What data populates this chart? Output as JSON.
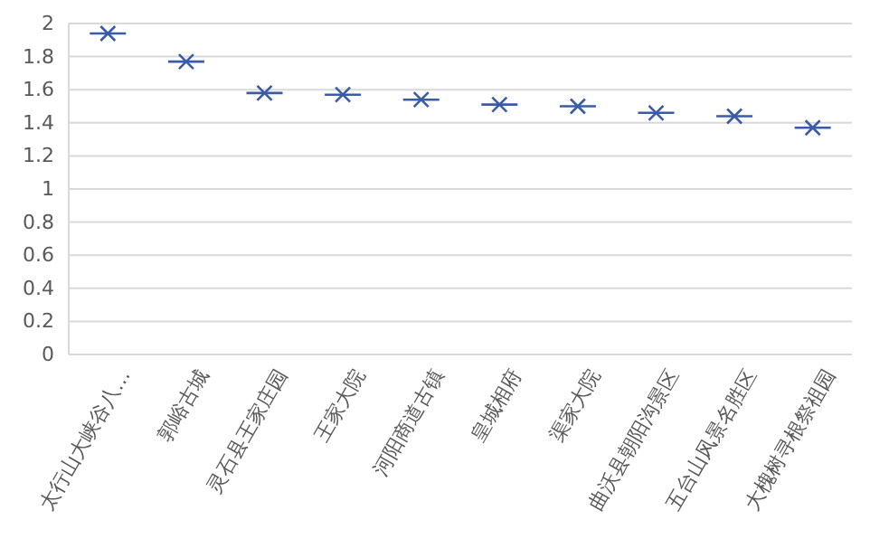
{
  "chart_data": {
    "type": "box",
    "categories": [
      "太行山大峡谷八…",
      "郭峪古城",
      "灵石县王家庄园",
      "王家大院",
      "河阳商道古镇",
      "皇城相府",
      "渠家大院",
      "曲沃县朝阳沟景区",
      "五台山风景名胜区",
      "大槐树寻根祭祖园"
    ],
    "series": [
      {
        "color": "#3a5ba8",
        "boxes": [
          {
            "low": 1.94,
            "q1": 1.94,
            "median": 1.94,
            "q3": 1.94,
            "high": 1.94,
            "mean": 1.94
          },
          {
            "low": 1.77,
            "q1": 1.77,
            "median": 1.77,
            "q3": 1.77,
            "high": 1.77,
            "mean": 1.77
          },
          {
            "low": 1.58,
            "q1": 1.58,
            "median": 1.58,
            "q3": 1.58,
            "high": 1.58,
            "mean": 1.58
          },
          {
            "low": 1.57,
            "q1": 1.57,
            "median": 1.57,
            "q3": 1.57,
            "high": 1.57,
            "mean": 1.57
          },
          {
            "low": 1.54,
            "q1": 1.54,
            "median": 1.54,
            "q3": 1.54,
            "high": 1.54,
            "mean": 1.54
          },
          {
            "low": 1.51,
            "q1": 1.51,
            "median": 1.51,
            "q3": 1.51,
            "high": 1.51,
            "mean": 1.51
          },
          {
            "low": 1.5,
            "q1": 1.5,
            "median": 1.5,
            "q3": 1.5,
            "high": 1.5,
            "mean": 1.5
          },
          {
            "low": 1.46,
            "q1": 1.46,
            "median": 1.46,
            "q3": 1.46,
            "high": 1.46,
            "mean": 1.46
          },
          {
            "low": 1.44,
            "q1": 1.44,
            "median": 1.44,
            "q3": 1.44,
            "high": 1.44,
            "mean": 1.44
          },
          {
            "low": 1.37,
            "q1": 1.37,
            "median": 1.37,
            "q3": 1.37,
            "high": 1.37,
            "mean": 1.37
          }
        ]
      }
    ],
    "ylim": [
      0,
      2
    ],
    "yticks": [
      0,
      0.2,
      0.4,
      0.6,
      0.8,
      1,
      1.2,
      1.4,
      1.6,
      1.8,
      2
    ],
    "grid": "y",
    "marker": "cross"
  }
}
